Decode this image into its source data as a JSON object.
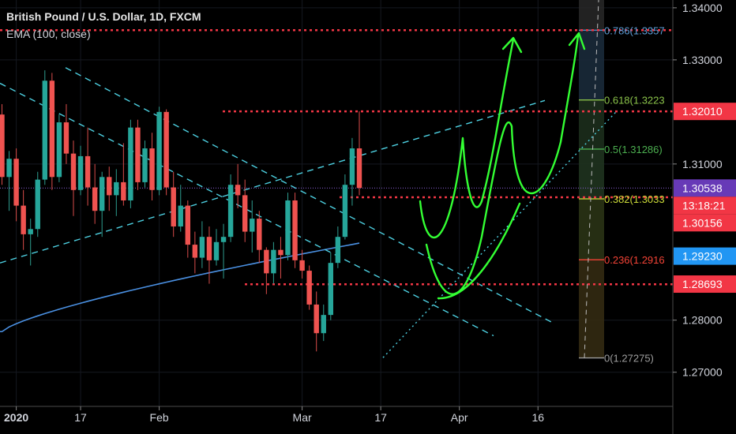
{
  "chart_data": {
    "type": "candlestick",
    "title": "British Pound / U.S. Dollar, 1D, FXCM",
    "indicator_label": "EMA (100, close)",
    "ylim": [
      1.2645,
      1.3415
    ],
    "y_ticks": [
      "1.34000",
      "1.33000",
      "1.32010",
      "1.31000",
      "1.30538",
      "1.29230",
      "1.28000",
      "1.27000"
    ],
    "x_ticks": [
      {
        "label": "2020",
        "bold": true,
        "bar": 2
      },
      {
        "label": "17",
        "bold": false,
        "bar": 11
      },
      {
        "label": "Feb",
        "bold": false,
        "bar": 22
      },
      {
        "label": "Mar",
        "bold": false,
        "bar": 42
      },
      {
        "label": "17",
        "bold": false,
        "bar": 53
      },
      {
        "label": "Apr",
        "bold": false,
        "bar": 64
      },
      {
        "label": "16",
        "bold": false,
        "bar": 75
      }
    ],
    "price_badges": [
      {
        "label": "1.32010",
        "value": 1.3201,
        "color": "#f23645"
      },
      {
        "label": "1.30538",
        "value": 1.30538,
        "color": "#673ab7"
      },
      {
        "label": "13:18:21",
        "value": 1.30345,
        "color": "#f23645"
      },
      {
        "label": "1.30156",
        "value": 1.30156,
        "color": "#f23645"
      },
      {
        "label": "1.29230",
        "value": 1.2923,
        "color": "#2196f3"
      },
      {
        "label": "1.28693",
        "value": 1.28693,
        "color": "#f23645"
      }
    ],
    "fib_levels": [
      {
        "label": "0.786(1.3357",
        "value": 1.3357,
        "color": "#5b9bd5"
      },
      {
        "label": "0.618(1.3223",
        "value": 1.3223,
        "color": "#8bc34a"
      },
      {
        "label": "0.5(1.31286)",
        "value": 1.31286,
        "color": "#4caf50"
      },
      {
        "label": "0.382(1.3033",
        "value": 1.3033,
        "color": "#cddc39"
      },
      {
        "label": "0.236(1.2916",
        "value": 1.2916,
        "color": "#f44336"
      },
      {
        "label": "0(1.27275)",
        "value": 1.27275,
        "color": "#9e9e9e"
      }
    ],
    "horizontal_lines": [
      1.3357,
      1.3201,
      1.3036,
      1.2869,
      1.30538
    ],
    "candles": [
      [
        1.3195,
        1.3215,
        1.306,
        1.3075
      ],
      [
        1.3075,
        1.3125,
        1.301,
        1.311
      ],
      [
        1.311,
        1.313,
        1.299,
        1.302
      ],
      [
        1.302,
        1.305,
        1.2935,
        1.2965
      ],
      [
        1.2965,
        1.2995,
        1.2905,
        1.2975
      ],
      [
        1.2975,
        1.3085,
        1.296,
        1.307
      ],
      [
        1.307,
        1.328,
        1.306,
        1.326
      ],
      [
        1.326,
        1.3275,
        1.305,
        1.3075
      ],
      [
        1.3075,
        1.3195,
        1.3065,
        1.318
      ],
      [
        1.318,
        1.3215,
        1.31,
        1.312
      ],
      [
        1.312,
        1.3145,
        1.3,
        1.305
      ],
      [
        1.305,
        1.3135,
        1.304,
        1.3115
      ],
      [
        1.3115,
        1.317,
        1.302,
        1.3055
      ],
      [
        1.3055,
        1.31,
        1.2985,
        1.301
      ],
      [
        1.301,
        1.3085,
        1.296,
        1.3075
      ],
      [
        1.3075,
        1.3095,
        1.301,
        1.304
      ],
      [
        1.304,
        1.309,
        1.3,
        1.3065
      ],
      [
        1.3065,
        1.314,
        1.302,
        1.303
      ],
      [
        1.303,
        1.3185,
        1.3015,
        1.317
      ],
      [
        1.317,
        1.3185,
        1.305,
        1.3065
      ],
      [
        1.3065,
        1.3145,
        1.3055,
        1.313
      ],
      [
        1.313,
        1.316,
        1.303,
        1.305
      ],
      [
        1.305,
        1.321,
        1.304,
        1.32
      ],
      [
        1.32,
        1.3205,
        1.304,
        1.3055
      ],
      [
        1.3055,
        1.3085,
        1.296,
        1.298
      ],
      [
        1.298,
        1.306,
        1.297,
        1.302
      ],
      [
        1.302,
        1.303,
        1.292,
        1.2945
      ],
      [
        1.2945,
        1.297,
        1.289,
        1.292
      ],
      [
        1.292,
        1.299,
        1.29,
        1.296
      ],
      [
        1.296,
        1.298,
        1.287,
        1.2915
      ],
      [
        1.2915,
        1.2975,
        1.2905,
        1.295
      ],
      [
        1.295,
        1.2985,
        1.288,
        1.296
      ],
      [
        1.296,
        1.308,
        1.295,
        1.306
      ],
      [
        1.306,
        1.31,
        1.3015,
        1.304
      ],
      [
        1.304,
        1.307,
        1.295,
        1.297
      ],
      [
        1.297,
        1.303,
        1.293,
        1.2995
      ],
      [
        1.2995,
        1.301,
        1.291,
        1.2935
      ],
      [
        1.2935,
        1.294,
        1.285,
        1.289
      ],
      [
        1.289,
        1.295,
        1.287,
        1.2935
      ],
      [
        1.2935,
        1.296,
        1.288,
        1.2925
      ],
      [
        1.2925,
        1.3045,
        1.2915,
        1.303
      ],
      [
        1.303,
        1.3045,
        1.29,
        1.2915
      ],
      [
        1.2915,
        1.2935,
        1.288,
        1.2895
      ],
      [
        1.2895,
        1.2905,
        1.282,
        1.283
      ],
      [
        1.283,
        1.2855,
        1.274,
        1.2775
      ],
      [
        1.2775,
        1.283,
        1.276,
        1.281
      ],
      [
        1.281,
        1.293,
        1.28,
        1.291
      ],
      [
        1.291,
        1.298,
        1.29,
        1.296
      ],
      [
        1.296,
        1.308,
        1.2955,
        1.306
      ],
      [
        1.306,
        1.315,
        1.302,
        1.313
      ],
      [
        1.313,
        1.3201,
        1.304,
        1.3054
      ]
    ]
  }
}
